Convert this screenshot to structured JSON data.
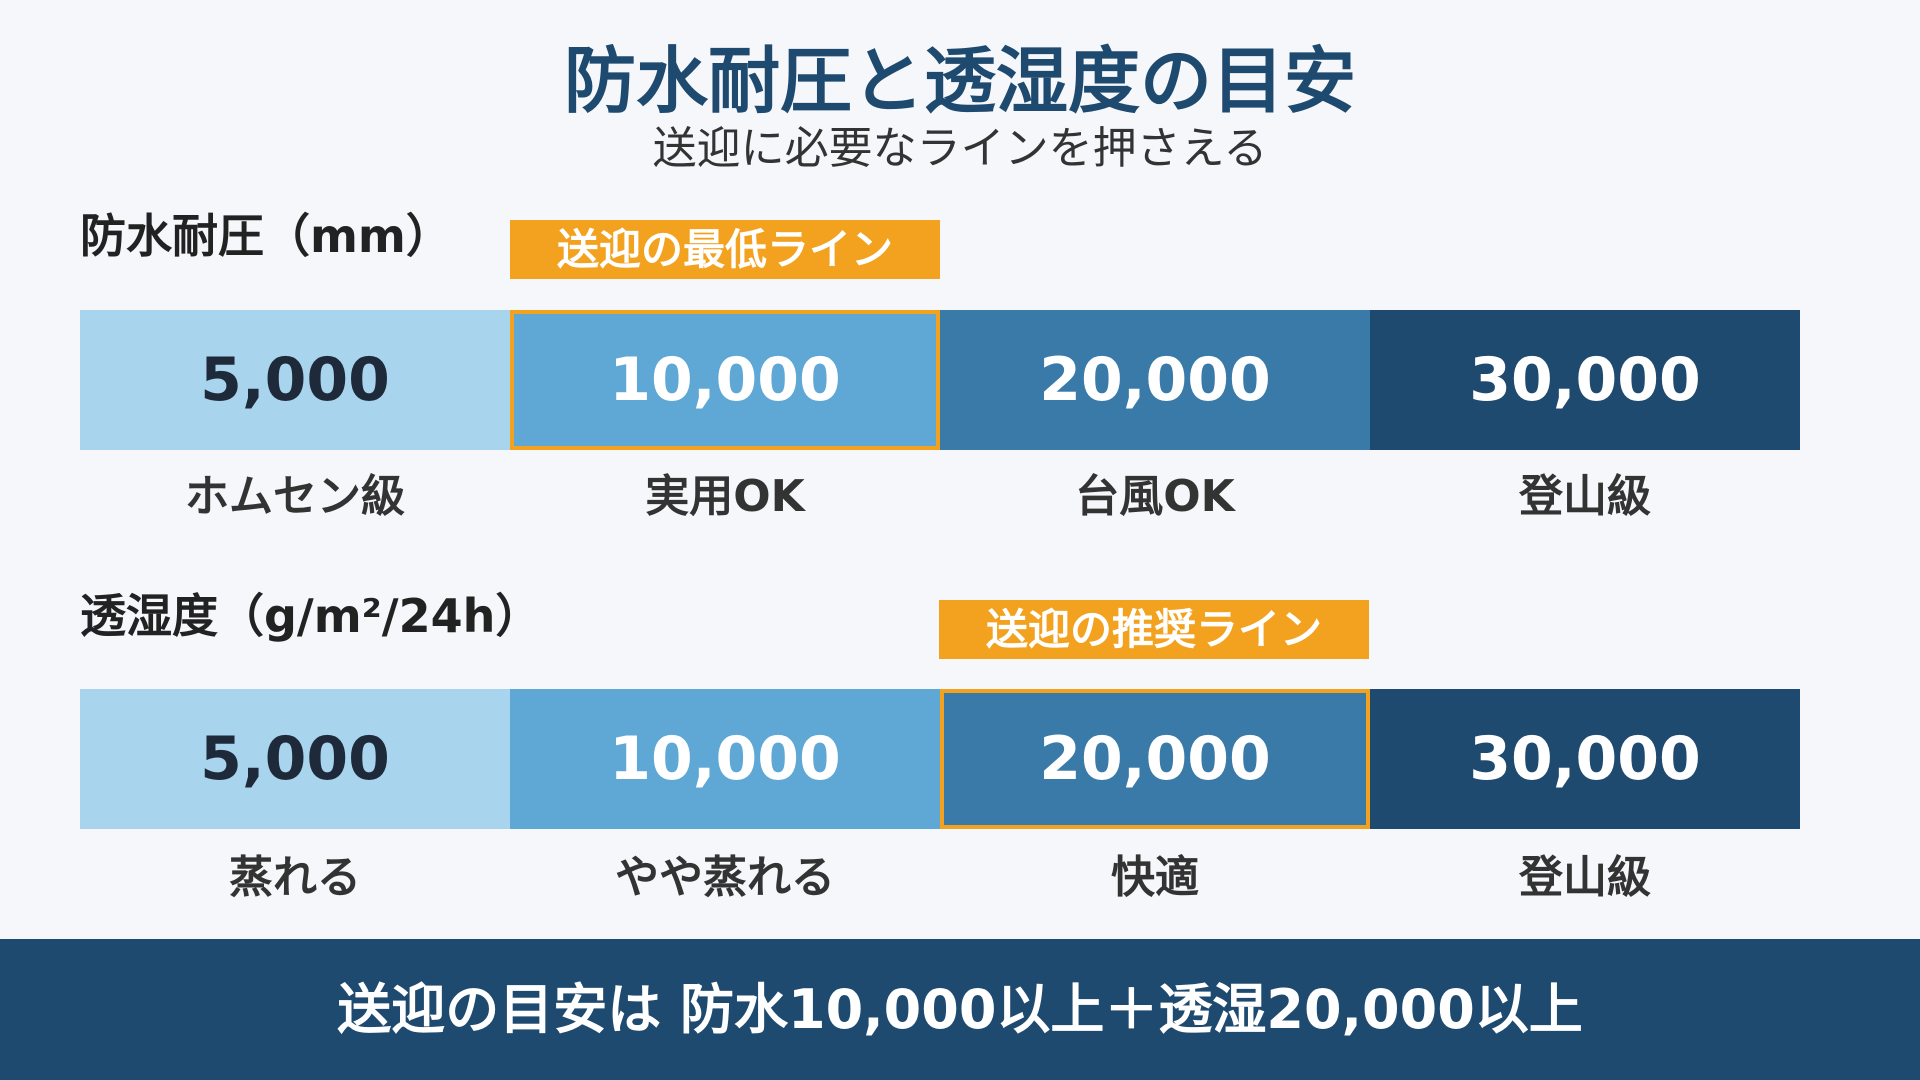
{
  "header": {
    "title": "防水耐圧と透湿度の目安",
    "subtitle": "送迎に必要なラインを押さえる"
  },
  "sections": [
    {
      "heading": "防水耐圧（mm）",
      "badge": "送迎の最低ライン",
      "cells": [
        {
          "value": "5,000",
          "label": "ホムセン級"
        },
        {
          "value": "10,000",
          "label": "実用OK"
        },
        {
          "value": "20,000",
          "label": "台風OK"
        },
        {
          "value": "30,000",
          "label": "登山級"
        }
      ]
    },
    {
      "heading": "透湿度（g/m²/24h）",
      "badge": "送迎の推奨ライン",
      "cells": [
        {
          "value": "5,000",
          "label": "蒸れる"
        },
        {
          "value": "10,000",
          "label": "やや蒸れる"
        },
        {
          "value": "20,000",
          "label": "快適"
        },
        {
          "value": "30,000",
          "label": "登山級"
        }
      ]
    }
  ],
  "footer": {
    "text": "送迎の目安は 防水10,000以上＋透湿20,000以上"
  }
}
